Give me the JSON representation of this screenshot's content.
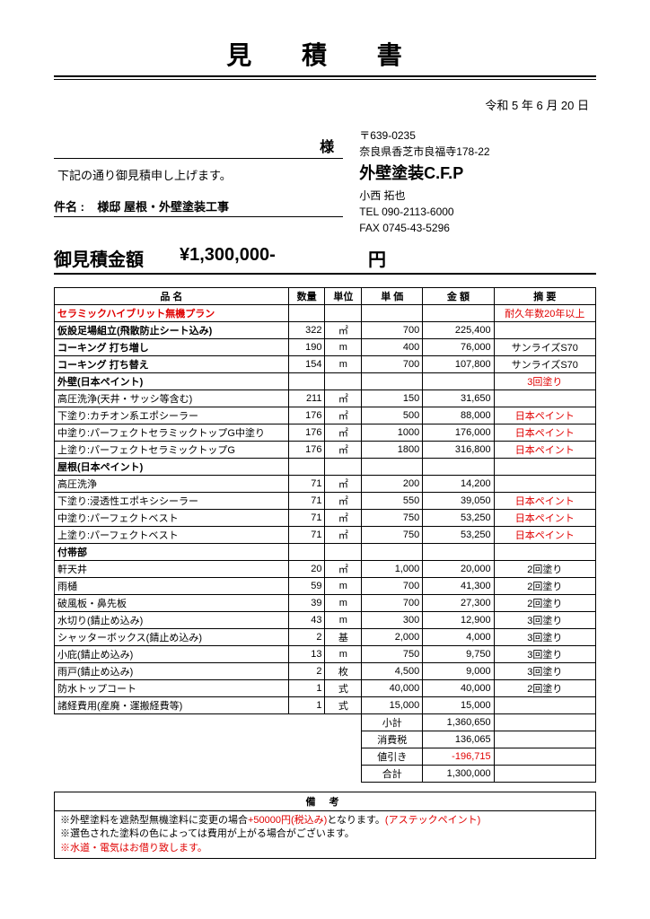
{
  "doc": {
    "title": "見 積 書",
    "date": "令和 5 年 6 月 20 日",
    "sama": "様",
    "intro": "下記の通り御見積申し上げます。",
    "subject_label": "件名 :",
    "subject": "様邸 屋根・外壁塗装工事",
    "amount_label": "御見積金額",
    "amount": "¥1,300,000-",
    "yen": "円"
  },
  "issuer": {
    "postal": "〒639-0235",
    "addr": "奈良県香芝市良福寺178-22",
    "company": "外壁塗装C.F.P",
    "person": "小西 拓也",
    "tel": "TEL 090-2113-6000",
    "fax": "FAX 0745-43-5296"
  },
  "headers": {
    "name": "品 名",
    "qty": "数量",
    "unit": "単位",
    "price": "単 価",
    "amount": "金 額",
    "note": "摘 要"
  },
  "rows": [
    {
      "name": "セラミックハイブリット無機プラン",
      "name_red": true,
      "name_bold": true,
      "note": "耐久年数20年以上",
      "note_red": true
    },
    {
      "name": "仮設足場組立(飛散防止シート込み)",
      "name_bold": true,
      "qty": "322",
      "unit": "㎡",
      "price": "700",
      "amount": "225,400"
    },
    {
      "name": "コーキング 打ち増し",
      "name_bold": true,
      "qty": "190",
      "unit": "m",
      "price": "400",
      "amount": "76,000",
      "note": "サンライズS70"
    },
    {
      "name": "コーキング 打ち替え",
      "name_bold": true,
      "qty": "154",
      "unit": "m",
      "price": "700",
      "amount": "107,800",
      "note": "サンライズS70"
    },
    {
      "name": "外壁(日本ペイント)",
      "name_bold": true,
      "note": "3回塗り",
      "note_red": true
    },
    {
      "name": "高圧洗浄(天井・サッシ等含む)",
      "indent": true,
      "qty": "211",
      "unit": "㎡",
      "price": "150",
      "amount": "31,650"
    },
    {
      "name": "下塗り:カチオン系エポシーラー",
      "indent": true,
      "qty": "176",
      "unit": "㎡",
      "price": "500",
      "amount": "88,000",
      "note": "日本ペイント",
      "note_red": true
    },
    {
      "name": "中塗り:パーフェクトセラミックトップG中塗り",
      "indent": true,
      "qty": "176",
      "unit": "㎡",
      "price": "1000",
      "amount": "176,000",
      "note": "日本ペイント",
      "note_red": true
    },
    {
      "name": "上塗り:パーフェクトセラミックトップG",
      "indent": true,
      "qty": "176",
      "unit": "㎡",
      "price": "1800",
      "amount": "316,800",
      "note": "日本ペイント",
      "note_red": true
    },
    {
      "name": "屋根(日本ペイント)",
      "name_bold": true
    },
    {
      "name": "高圧洗浄",
      "indent": true,
      "qty": "71",
      "unit": "㎡",
      "price": "200",
      "amount": "14,200"
    },
    {
      "name": "下塗り:浸透性エポキシシーラー",
      "indent": true,
      "qty": "71",
      "unit": "㎡",
      "price": "550",
      "amount": "39,050",
      "note": "日本ペイント",
      "note_red": true
    },
    {
      "name": "中塗り:パーフェクトベスト",
      "indent": true,
      "qty": "71",
      "unit": "㎡",
      "price": "750",
      "amount": "53,250",
      "note": "日本ペイント",
      "note_red": true
    },
    {
      "name": "上塗り:パーフェクトベスト",
      "indent": true,
      "qty": "71",
      "unit": "㎡",
      "price": "750",
      "amount": "53,250",
      "note": "日本ペイント",
      "note_red": true
    },
    {
      "name": "付帯部",
      "name_bold": true
    },
    {
      "name": "軒天井",
      "indent": true,
      "qty": "20",
      "unit": "㎡",
      "price": "1,000",
      "amount": "20,000",
      "note": "2回塗り"
    },
    {
      "name": "雨樋",
      "indent": true,
      "qty": "59",
      "unit": "m",
      "price": "700",
      "amount": "41,300",
      "note": "2回塗り"
    },
    {
      "name": "破風板・鼻先板",
      "indent": true,
      "qty": "39",
      "unit": "m",
      "price": "700",
      "amount": "27,300",
      "note": "2回塗り"
    },
    {
      "name": "水切り(錆止め込み)",
      "indent": true,
      "qty": "43",
      "unit": "m",
      "price": "300",
      "amount": "12,900",
      "note": "3回塗り"
    },
    {
      "name": "シャッターボックス(錆止め込み)",
      "indent": true,
      "qty": "2",
      "unit": "基",
      "price": "2,000",
      "amount": "4,000",
      "note": "3回塗り"
    },
    {
      "name": "小庇(錆止め込み)",
      "indent": true,
      "qty": "13",
      "unit": "m",
      "price": "750",
      "amount": "9,750",
      "note": "3回塗り"
    },
    {
      "name": "雨戸(錆止め込み)",
      "indent": true,
      "qty": "2",
      "unit": "枚",
      "price": "4,500",
      "amount": "9,000",
      "note": "3回塗り"
    },
    {
      "name": "防水トップコート",
      "indent": true,
      "qty": "1",
      "unit": "式",
      "price": "40,000",
      "amount": "40,000",
      "note": "2回塗り"
    },
    {
      "name": "諸経費用(産廃・運搬経費等)",
      "qty": "1",
      "unit": "式",
      "price": "15,000",
      "amount": "15,000"
    }
  ],
  "totals": [
    {
      "label": "小計",
      "amount": "1,360,650"
    },
    {
      "label": "消費税",
      "amount": "136,065"
    },
    {
      "label": "値引き",
      "amount": "-196,715",
      "neg": true
    },
    {
      "label": "合計",
      "amount": "1,300,000"
    }
  ],
  "remarks": {
    "title": "備 考",
    "l1a": "※外壁塗料を遮熱型無機塗料に変更の場合",
    "l1b": "+50000円(税込み)",
    "l1c": "となります。",
    "l1d": "(アステックペイント)",
    "l2": "※選色された塗料の色によっては費用が上がる場合がございます。",
    "l3": "※水道・電気はお借り致します。"
  }
}
